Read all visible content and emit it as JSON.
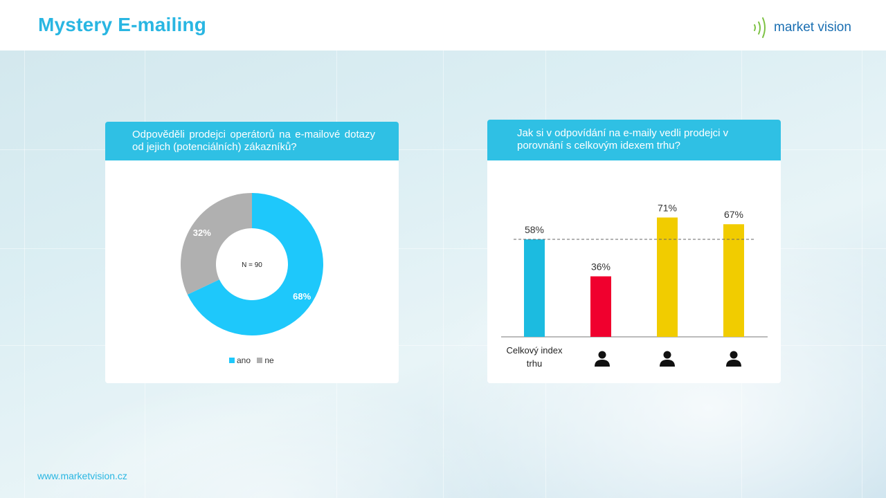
{
  "header": {
    "title": "Mystery E-mailing",
    "logo_text": "market vision"
  },
  "footer": {
    "url": "www.marketvision.cz"
  },
  "left_card": {
    "question": "Odpověděli prodejci operátorů na e-mailové dotazy od jejich (potenciálních) zákazníků?",
    "center_label": "N = 90",
    "legend": [
      "ano",
      "ne"
    ]
  },
  "right_card": {
    "question": "Jak si v odpovídání na e-maily vedli prodejci v porovnání s celkovým idexem trhu?",
    "first_category": "Celkový index trhu"
  },
  "colors": {
    "accent": "#29b6e2",
    "header_bar": "#2fc0e4",
    "donut_ano": "#1ec8fb",
    "donut_ne": "#b0b0b0",
    "bar_index": "#1cbbe0",
    "bar_red": "#f0002e",
    "bar_yellow": "#f1cc00"
  },
  "icons": [
    "person-icon",
    "person-icon",
    "person-icon"
  ],
  "chart_data": [
    {
      "type": "pie",
      "donut": true,
      "labels": [
        "ano",
        "ne"
      ],
      "values": [
        68,
        32
      ],
      "value_labels": [
        "68%",
        "32%"
      ],
      "center_text": "N = 90",
      "legend_position": "bottom"
    },
    {
      "type": "bar",
      "categories": [
        "Celkový index trhu",
        "",
        "",
        ""
      ],
      "category_icons": [
        "",
        "person-icon",
        "person-icon",
        "person-icon"
      ],
      "values": [
        58,
        36,
        71,
        67
      ],
      "value_labels": [
        "58%",
        "36%",
        "71%",
        "67%"
      ],
      "bar_colors": [
        "#1cbbe0",
        "#f0002e",
        "#f1cc00",
        "#f1cc00"
      ],
      "reference_line": 58,
      "ylim": [
        0,
        100
      ]
    }
  ]
}
